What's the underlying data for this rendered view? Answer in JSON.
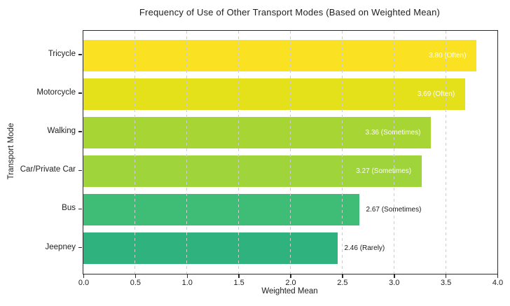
{
  "chart_data": {
    "type": "bar",
    "orientation": "horizontal",
    "title": "Frequency of Use of Other Transport Modes (Based on Weighted Mean)",
    "xlabel": "Weighted Mean",
    "ylabel": "Transport Mode",
    "xlim": [
      0.0,
      4.0
    ],
    "xticks": [
      "0.0",
      "0.5",
      "1.0",
      "1.5",
      "2.0",
      "2.5",
      "3.0",
      "3.5",
      "4.0"
    ],
    "grid": "vertical-dashed",
    "legend": "none",
    "categories": [
      "Tricycle",
      "Motorcycle",
      "Walking",
      "Car/Private Car",
      "Bus",
      "Jeepney"
    ],
    "values": [
      3.8,
      3.69,
      3.36,
      3.27,
      2.67,
      2.46
    ],
    "bars": [
      {
        "category": "Tricycle",
        "value": 3.8,
        "label": "3.80 (Often)",
        "color": "#FAE122",
        "label_position": "inside"
      },
      {
        "category": "Motorcycle",
        "value": 3.69,
        "label": "3.69 (Often)",
        "color": "#E4E01A",
        "label_position": "inside"
      },
      {
        "category": "Walking",
        "value": 3.36,
        "label": "3.36 (Sometimes)",
        "color": "#A7D634",
        "label_position": "inside"
      },
      {
        "category": "Car/Private Car",
        "value": 3.27,
        "label": "3.27 (Sometimes)",
        "color": "#9FD43A",
        "label_position": "inside"
      },
      {
        "category": "Bus",
        "value": 2.67,
        "label": "2.67 (Sometimes)",
        "color": "#3FBD77",
        "label_position": "outside"
      },
      {
        "category": "Jeepney",
        "value": 2.46,
        "label": "2.46 (Rarely)",
        "color": "#2FB27E",
        "label_position": "outside"
      }
    ],
    "colors": {
      "grid": "#cdcdcd",
      "spine": "#2b2b2b",
      "inside_label": "#ffffff",
      "outside_label": "#1a1a1a",
      "text": "#212121",
      "background": "#ffffff"
    }
  }
}
